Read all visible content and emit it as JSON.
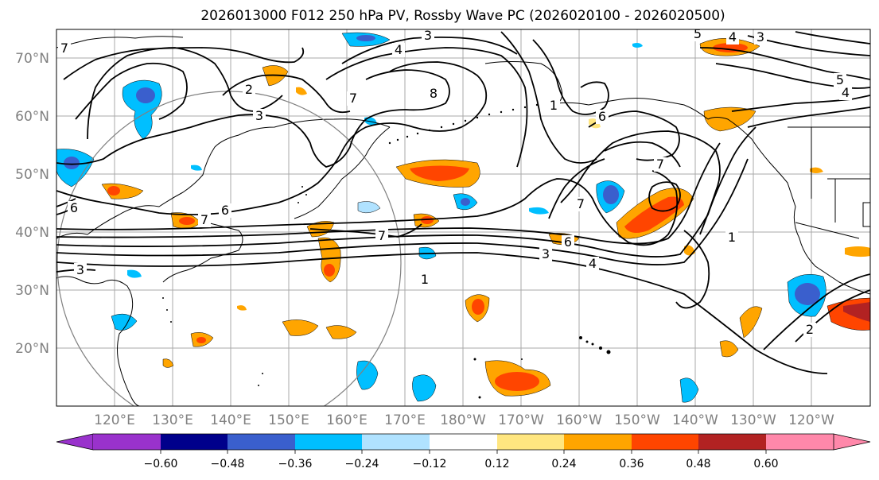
{
  "title": "2026013000 F012 250 hPa PV, Rossby Wave PC (2026020100 - 2026020500)",
  "lat_labels": [
    "70°N",
    "60°N",
    "50°N",
    "40°N",
    "30°N",
    "20°N"
  ],
  "lon_labels": [
    "120°E",
    "130°E",
    "140°E",
    "150°E",
    "160°E",
    "170°E",
    "180°W",
    "170°W",
    "160°W",
    "150°W",
    "140°W",
    "130°W",
    "120°W"
  ],
  "colorbar": {
    "ticks": [
      "−0.60",
      "−0.48",
      "−0.36",
      "−0.24",
      "−0.12",
      "0.12",
      "0.24",
      "0.36",
      "0.48",
      "0.60"
    ],
    "colors": [
      "#9932cc",
      "#00008b",
      "#3a5fcd",
      "#00bfff",
      "#b0e2ff",
      "#ffffff",
      "#ffe680",
      "#ffa500",
      "#ff4500",
      "#b22222",
      "#ff88aa"
    ]
  },
  "contour_labels": [
    "3",
    "4",
    "7",
    "8",
    "2",
    "3",
    "7",
    "6",
    "7",
    "6",
    "3",
    "1",
    "7",
    "6",
    "3",
    "4",
    "1",
    "7",
    "1",
    "6",
    "5",
    "4",
    "3",
    "5",
    "4",
    "7",
    "2"
  ],
  "chart_data": {
    "type": "map",
    "projection": "cylindrical",
    "extent": {
      "lon_min": 110,
      "lon_max": 250,
      "lat_min": 10,
      "lat_max": 75
    },
    "field": "250 hPa PV (contours), Rossby Wave PC (shaded)",
    "shading_levels": [
      -0.6,
      -0.48,
      -0.36,
      -0.24,
      -0.12,
      0.12,
      0.24,
      0.36,
      0.48,
      0.6
    ]
  }
}
